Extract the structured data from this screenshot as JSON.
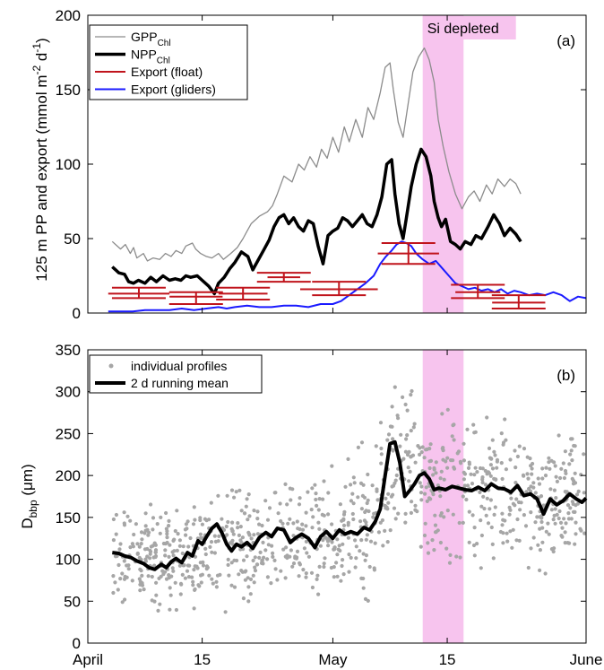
{
  "colors": {
    "gpp": "#8c8c8c",
    "npp": "#000000",
    "export_float": "#c0141c",
    "export_gliders": "#1a1aff",
    "si_band": "#f7c4ee",
    "points": "#a6a6a6",
    "running_mean": "#000000"
  },
  "x_axis": {
    "ticks": [
      {
        "day": 0,
        "label": "April"
      },
      {
        "day": 14,
        "label": "15"
      },
      {
        "day": 30,
        "label": "May"
      },
      {
        "day": 44,
        "label": "15"
      },
      {
        "day": 61,
        "label": "June"
      }
    ],
    "range": [
      0,
      61
    ]
  },
  "si_depleted": {
    "label": "Si depleted",
    "start": 41,
    "end": 46
  },
  "chart_data": [
    {
      "panel": "a",
      "panel_label": "(a)",
      "type": "line",
      "ylabel": "125 m PP and export (mmol m−2 d−1)",
      "ylabel_parts": {
        "main": "125 m PP and export (mmol m",
        "e1": "-2",
        "mid": " d",
        "e2": "-1",
        "end": ")"
      },
      "ylim": [
        0,
        200
      ],
      "yticks": [
        0,
        50,
        100,
        150,
        200
      ],
      "legend_position": "top-left",
      "legend": [
        {
          "main": "GPP",
          "sub": "Chl"
        },
        {
          "main": "NPP",
          "sub": "Chl"
        },
        {
          "main": "Export (float)",
          "sub": ""
        },
        {
          "main": "Export (gliders)",
          "sub": ""
        }
      ],
      "series": [
        {
          "name": "GPP_Chl",
          "x": [
            3,
            4,
            4.6,
            5.2,
            5.6,
            6,
            6.8,
            7.3,
            8,
            8.8,
            9.5,
            10.2,
            10.8,
            11.5,
            12,
            12.8,
            13.2,
            13.8,
            14.5,
            15.2,
            16,
            16.6,
            17.5,
            18.3,
            19,
            19.5,
            20,
            21,
            22,
            22.6,
            23.2,
            24,
            25,
            25.8,
            26.5,
            27.2,
            28,
            28.6,
            29.3,
            30,
            30.7,
            31.4,
            32,
            32.8,
            33.6,
            34.3,
            35,
            35.8,
            36.4,
            37,
            37.4,
            38,
            38.6,
            39.2,
            39.8,
            40.5,
            41.2,
            41.8,
            42.4,
            42.9,
            43.5,
            44.2,
            45,
            45.8,
            46.6,
            47.3,
            48,
            48.8,
            49.5,
            50.2,
            51,
            51.7,
            52.4,
            53
          ],
          "y": [
            48,
            43,
            46,
            40,
            44,
            37,
            40,
            35,
            37,
            36,
            40,
            38,
            42,
            40,
            45,
            47,
            43,
            40,
            38,
            37,
            40,
            36,
            40,
            44,
            50,
            55,
            60,
            65,
            68,
            72,
            80,
            92,
            88,
            100,
            96,
            105,
            98,
            110,
            104,
            118,
            108,
            125,
            115,
            130,
            118,
            138,
            130,
            148,
            165,
            168,
            150,
            128,
            118,
            140,
            162,
            172,
            178,
            170,
            155,
            130,
            112,
            95,
            80,
            70,
            78,
            82,
            75,
            86,
            80,
            90,
            85,
            90,
            87,
            80
          ]
        },
        {
          "name": "NPP_Chl",
          "x": [
            3,
            3.8,
            4.5,
            5,
            5.6,
            6.2,
            7,
            7.7,
            8.4,
            9.2,
            10,
            10.7,
            11.4,
            12,
            12.6,
            13.4,
            14,
            14.8,
            15.5,
            16,
            16.7,
            17.4,
            18,
            18.8,
            19.6,
            20.2,
            20.8,
            21.5,
            22.2,
            22.8,
            23.4,
            24,
            24.6,
            25.2,
            25.8,
            26.4,
            27,
            27.6,
            28.2,
            28.8,
            29.4,
            30,
            30.6,
            31.2,
            31.8,
            32.4,
            33,
            33.6,
            34.2,
            34.8,
            35.4,
            36,
            36.6,
            37.2,
            37.6,
            38.1,
            38.6,
            39,
            39.6,
            40.2,
            40.8,
            41.4,
            42,
            42.4,
            42.9,
            43.3,
            43.8,
            44.4,
            45,
            45.6,
            46.2,
            46.9,
            47.5,
            48.2,
            49,
            49.7,
            50.4,
            51,
            51.7,
            52.4,
            53
          ],
          "y": [
            31,
            27,
            26,
            21,
            20,
            22,
            20,
            24,
            21,
            25,
            22,
            23,
            22,
            25,
            24,
            25,
            22,
            18,
            13,
            20,
            24,
            30,
            34,
            41,
            38,
            29,
            35,
            42,
            49,
            58,
            64,
            66,
            60,
            64,
            58,
            55,
            62,
            60,
            45,
            33,
            52,
            55,
            57,
            64,
            62,
            58,
            62,
            66,
            60,
            58,
            66,
            78,
            100,
            103,
            80,
            60,
            50,
            64,
            85,
            100,
            110,
            105,
            92,
            75,
            64,
            58,
            63,
            48,
            46,
            43,
            48,
            46,
            52,
            50,
            58,
            66,
            60,
            52,
            57,
            53,
            48
          ]
        },
        {
          "name": "Export_gliders",
          "x": [
            2.5,
            4,
            5.5,
            7,
            8.5,
            10,
            11.5,
            13,
            14.5,
            16,
            17,
            18,
            19.5,
            21,
            22.5,
            24,
            25.5,
            27,
            28.5,
            30,
            31,
            32,
            33,
            34,
            35,
            35.8,
            36.5,
            37.2,
            37.8,
            38.4,
            39,
            39.6,
            40.2,
            41,
            41.8,
            42.6,
            43.4,
            44.2,
            45,
            45.8,
            46.6,
            47.4,
            48.2,
            49,
            49.8,
            50.6,
            51.4,
            52.2,
            53,
            54,
            55,
            56,
            57,
            58,
            59,
            60,
            61
          ],
          "y": [
            1,
            1,
            1,
            2,
            2,
            2,
            3,
            2,
            3,
            4,
            3,
            4,
            5,
            4,
            4,
            5,
            5,
            4,
            6,
            6,
            8,
            12,
            16,
            20,
            25,
            33,
            38,
            42,
            46,
            48,
            47,
            45,
            40,
            36,
            33,
            35,
            30,
            25,
            20,
            18,
            16,
            17,
            15,
            16,
            14,
            16,
            13,
            15,
            14,
            12,
            13,
            12,
            14,
            12,
            8,
            11,
            10
          ]
        }
      ],
      "export_float": [
        {
          "start": 2.5,
          "end": 10,
          "value": 13,
          "low": 10,
          "high": 17
        },
        {
          "start": 10,
          "end": 16.5,
          "value": 11,
          "low": 6,
          "high": 14
        },
        {
          "start": 16,
          "end": 22,
          "value": 13,
          "low": 9,
          "high": 17
        },
        {
          "start": 22,
          "end": 26,
          "value": 24,
          "low": 21,
          "high": 27
        },
        {
          "start": 26,
          "end": 35.5,
          "value": 16,
          "low": 12,
          "high": 21
        },
        {
          "start": 35.5,
          "end": 43,
          "value": 40,
          "low": 33,
          "high": 47
        },
        {
          "start": 45,
          "end": 50.5,
          "value": 14,
          "low": 10,
          "high": 19
        },
        {
          "start": 49.5,
          "end": 56,
          "value": 7,
          "low": 3,
          "high": 12
        }
      ]
    },
    {
      "panel": "b",
      "panel_label": "(b)",
      "type": "scatter",
      "ylabel_main": "D",
      "ylabel_sub": "bbp",
      "ylabel_unit": " (μm)",
      "ylim": [
        0,
        350
      ],
      "yticks": [
        0,
        50,
        100,
        150,
        200,
        250,
        300,
        350
      ],
      "legend_position": "top-left",
      "legend": [
        "individual profiles",
        "2 d running mean"
      ],
      "scatter_band": {
        "x": [
          3,
          10,
          20,
          30,
          35,
          38,
          42,
          47,
          55,
          61
        ],
        "center": [
          108,
          100,
          115,
          130,
          150,
          220,
          190,
          185,
          170,
          170
        ],
        "spread": [
          40,
          40,
          45,
          45,
          55,
          60,
          60,
          55,
          55,
          55
        ]
      },
      "scatter_count": 1000,
      "running_mean": {
        "x": [
          3,
          3.8,
          4.5,
          5.3,
          6,
          6.8,
          7.5,
          8.2,
          9,
          9.6,
          10.2,
          10.8,
          11.5,
          12.2,
          12.8,
          13.5,
          14,
          14.6,
          15.2,
          15.8,
          16.4,
          17,
          17.6,
          18.2,
          18.8,
          19.5,
          20.2,
          21,
          21.8,
          22.5,
          23.2,
          24,
          24.8,
          25.5,
          26.2,
          27,
          27.8,
          28.5,
          29.2,
          30,
          30.8,
          31.5,
          32.2,
          33,
          33.8,
          34.5,
          35.2,
          35.8,
          36.4,
          37,
          37.6,
          38.2,
          38.8,
          39.4,
          40,
          40.6,
          41.2,
          41.8,
          42.4,
          43,
          43.8,
          44.6,
          45.4,
          46.2,
          47,
          47.8,
          48.6,
          49.4,
          50.2,
          51,
          51.8,
          52.6,
          53.4,
          54.2,
          55,
          55.8,
          56.6,
          57.4,
          58.2,
          59,
          59.8,
          60.5,
          61
        ],
        "y": [
          108,
          107,
          104,
          102,
          98,
          95,
          90,
          88,
          94,
          90,
          97,
          101,
          96,
          108,
          104,
          122,
          118,
          128,
          137,
          142,
          132,
          118,
          110,
          118,
          115,
          120,
          113,
          126,
          132,
          127,
          137,
          135,
          120,
          126,
          130,
          125,
          114,
          127,
          133,
          125,
          135,
          130,
          133,
          130,
          138,
          135,
          145,
          160,
          200,
          238,
          240,
          215,
          175,
          182,
          190,
          200,
          203,
          196,
          183,
          185,
          183,
          187,
          185,
          183,
          182,
          186,
          182,
          190,
          185,
          184,
          180,
          188,
          176,
          178,
          172,
          154,
          172,
          165,
          170,
          178,
          172,
          168,
          173
        ]
      }
    }
  ]
}
